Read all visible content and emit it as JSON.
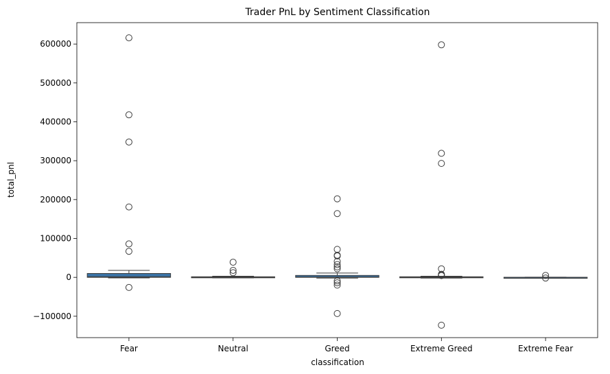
{
  "chart_data": {
    "type": "box",
    "title": "Trader PnL by Sentiment Classification",
    "xlabel": "classification",
    "ylabel": "total_pnl",
    "ylim": [
      -155000,
      655000
    ],
    "yticks": [
      -100000,
      0,
      100000,
      200000,
      300000,
      400000,
      500000,
      600000
    ],
    "ytick_labels": [
      "−100000",
      "0",
      "100000",
      "200000",
      "300000",
      "400000",
      "500000",
      "600000"
    ],
    "box_color": "#3b73a5",
    "categories": [
      "Fear",
      "Neutral",
      "Greed",
      "Extreme Greed",
      "Extreme Fear"
    ],
    "boxes": [
      {
        "category": "Fear",
        "whisker_low": -1500,
        "q1": 0,
        "median": 1200,
        "q3": 10000,
        "whisker_high": 18000,
        "outliers": [
          616000,
          418000,
          348000,
          181000,
          86000,
          67000,
          -26000
        ]
      },
      {
        "category": "Neutral",
        "whisker_low": -1500,
        "q1": -300,
        "median": 200,
        "q3": 1500,
        "whisker_high": 3000,
        "outliers": [
          39000,
          18000,
          12000
        ]
      },
      {
        "category": "Greed",
        "whisker_low": -2000,
        "q1": 0,
        "median": 800,
        "q3": 5000,
        "whisker_high": 11000,
        "outliers": [
          202000,
          164000,
          72000,
          57000,
          55000,
          41000,
          33000,
          27000,
          22000,
          -9000,
          -14000,
          -20000,
          -93000
        ]
      },
      {
        "category": "Extreme Greed",
        "whisker_low": -2000,
        "q1": -300,
        "median": 100,
        "q3": 1500,
        "whisker_high": 3000,
        "outliers": [
          598000,
          319000,
          293000,
          22000,
          8000,
          6000,
          4500,
          -123000
        ]
      },
      {
        "category": "Extreme Fear",
        "whisker_low": -600,
        "q1": -200,
        "median": 0,
        "q3": 200,
        "whisker_high": 600,
        "outliers": [
          5000,
          -1800
        ]
      }
    ],
    "grid": false,
    "legend": "none"
  }
}
